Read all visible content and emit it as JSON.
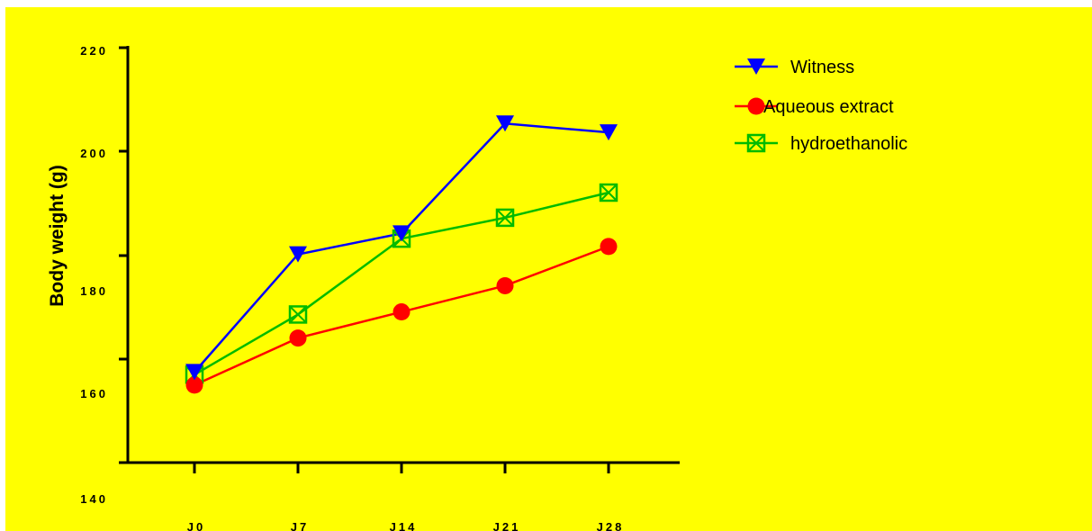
{
  "chart_data": {
    "type": "line",
    "title": "",
    "xlabel": "",
    "ylabel": "Body weight (g)",
    "categories": [
      "J0",
      "J7",
      "J14",
      "J21",
      "J28"
    ],
    "ylim": [
      140,
      220
    ],
    "y_tick_labels": [
      "220",
      "200",
      "180",
      "160",
      "140"
    ],
    "grid": false,
    "legend_position": "top-right",
    "series": [
      {
        "name": "Witness",
        "color": "#0000ff",
        "marker": "triangle-down",
        "values": [
          158,
          180.5,
          184.5,
          205.5,
          203.8
        ]
      },
      {
        "name": "Aqueous extract",
        "color": "#ff0000",
        "marker": "circle",
        "values": [
          155.5,
          164.5,
          169.5,
          174.5,
          182.0
        ]
      },
      {
        "name": "hydroethanolic",
        "color": "#00bb00",
        "marker": "boxed-x",
        "values": [
          157.5,
          169.0,
          183.5,
          187.5,
          192.3
        ]
      }
    ]
  }
}
